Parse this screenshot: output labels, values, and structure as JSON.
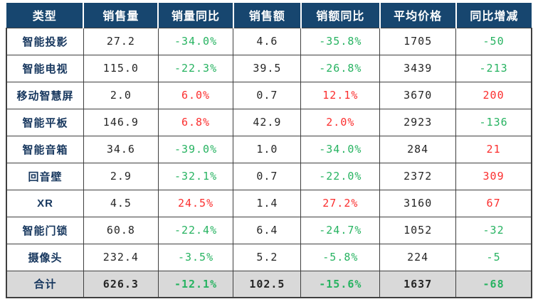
{
  "chart_data": {
    "type": "table",
    "columns": [
      "类型",
      "销售量",
      "销量同比",
      "销售额",
      "销额同比",
      "平均价格",
      "同比增减"
    ],
    "rows": [
      [
        "智能投影",
        "27.2",
        "-34.0%",
        "4.6",
        "-35.8%",
        "1705",
        "-50"
      ],
      [
        "智能电视",
        "115.0",
        "-22.3%",
        "39.5",
        "-26.8%",
        "3439",
        "-213"
      ],
      [
        "移动智慧屏",
        "2.0",
        "6.0%",
        "0.7",
        "12.1%",
        "3670",
        "200"
      ],
      [
        "智能平板",
        "146.9",
        "6.8%",
        "42.9",
        "2.0%",
        "2923",
        "-136"
      ],
      [
        "智能音箱",
        "34.6",
        "-39.0%",
        "1.0",
        "-34.0%",
        "284",
        "21"
      ],
      [
        "回音壁",
        "2.9",
        "-32.1%",
        "0.7",
        "-22.0%",
        "2372",
        "309"
      ],
      [
        "XR",
        "4.5",
        "24.5%",
        "1.4",
        "27.2%",
        "3160",
        "67"
      ],
      [
        "智能门锁",
        "60.8",
        "-22.4%",
        "6.4",
        "-24.7%",
        "1052",
        "-32"
      ],
      [
        "摄像头",
        "232.4",
        "-3.5%",
        "5.2",
        "-5.8%",
        "224",
        "-5"
      ],
      [
        "合计",
        "626.3",
        "-12.1%",
        "102.5",
        "-15.6%",
        "1637",
        "-68"
      ]
    ],
    "legend_position": "none",
    "grid": true
  },
  "table": {
    "columns": [
      {
        "key": "type",
        "label": "类型",
        "signed": false
      },
      {
        "key": "sales_volume",
        "label": "销售量",
        "signed": false
      },
      {
        "key": "volume_yoy",
        "label": "销量同比",
        "signed": true
      },
      {
        "key": "sales_amount",
        "label": "销售额",
        "signed": false
      },
      {
        "key": "amount_yoy",
        "label": "销额同比",
        "signed": true
      },
      {
        "key": "avg_price",
        "label": "平均价格",
        "signed": false
      },
      {
        "key": "yoy_change",
        "label": "同比增减",
        "signed": true
      }
    ],
    "rows": [
      {
        "type": "智能投影",
        "sales_volume": "27.2",
        "volume_yoy": "-34.0%",
        "sales_amount": "4.6",
        "amount_yoy": "-35.8%",
        "avg_price": "1705",
        "yoy_change": "-50",
        "total": false
      },
      {
        "type": "智能电视",
        "sales_volume": "115.0",
        "volume_yoy": "-22.3%",
        "sales_amount": "39.5",
        "amount_yoy": "-26.8%",
        "avg_price": "3439",
        "yoy_change": "-213",
        "total": false
      },
      {
        "type": "移动智慧屏",
        "sales_volume": "2.0",
        "volume_yoy": "6.0%",
        "sales_amount": "0.7",
        "amount_yoy": "12.1%",
        "avg_price": "3670",
        "yoy_change": "200",
        "total": false
      },
      {
        "type": "智能平板",
        "sales_volume": "146.9",
        "volume_yoy": "6.8%",
        "sales_amount": "42.9",
        "amount_yoy": "2.0%",
        "avg_price": "2923",
        "yoy_change": "-136",
        "total": false
      },
      {
        "type": "智能音箱",
        "sales_volume": "34.6",
        "volume_yoy": "-39.0%",
        "sales_amount": "1.0",
        "amount_yoy": "-34.0%",
        "avg_price": "284",
        "yoy_change": "21",
        "total": false
      },
      {
        "type": "回音壁",
        "sales_volume": "2.9",
        "volume_yoy": "-32.1%",
        "sales_amount": "0.7",
        "amount_yoy": "-22.0%",
        "avg_price": "2372",
        "yoy_change": "309",
        "total": false
      },
      {
        "type": "XR",
        "sales_volume": "4.5",
        "volume_yoy": "24.5%",
        "sales_amount": "1.4",
        "amount_yoy": "27.2%",
        "avg_price": "3160",
        "yoy_change": "67",
        "total": false
      },
      {
        "type": "智能门锁",
        "sales_volume": "60.8",
        "volume_yoy": "-22.4%",
        "sales_amount": "6.4",
        "amount_yoy": "-24.7%",
        "avg_price": "1052",
        "yoy_change": "-32",
        "total": false
      },
      {
        "type": "摄像头",
        "sales_volume": "232.4",
        "volume_yoy": "-3.5%",
        "sales_amount": "5.2",
        "amount_yoy": "-5.8%",
        "avg_price": "224",
        "yoy_change": "-5",
        "total": false
      },
      {
        "type": "合计",
        "sales_volume": "626.3",
        "volume_yoy": "-12.1%",
        "sales_amount": "102.5",
        "amount_yoy": "-15.6%",
        "avg_price": "1637",
        "yoy_change": "-68",
        "total": true
      }
    ]
  },
  "colors": {
    "header_bg": "#17466f",
    "header_text": "#ffffff",
    "label_text": "#17375e",
    "number_text": "#262626",
    "positive": "#fb2e2e",
    "negative": "#27b361",
    "total_bg": "#d9d9d9",
    "border": "#3f3f3f",
    "page_bg": "#ffffff"
  }
}
